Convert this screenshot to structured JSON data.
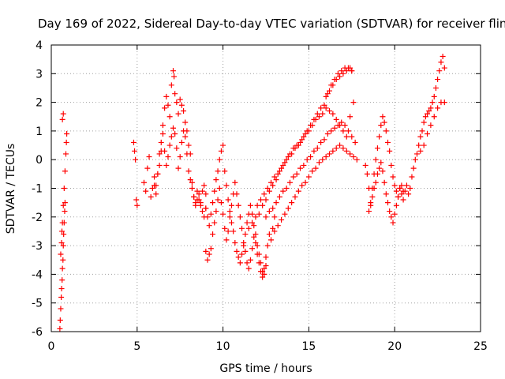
{
  "chart_data": {
    "type": "scatter",
    "title": "Day 169 of 2022, Sidereal Day-to-day VTEC variation (SDTVAR) for receiver flin",
    "xlabel": "GPS time / hours",
    "ylabel": "SDTVAR / TECUs",
    "xlim": [
      0,
      25
    ],
    "ylim": [
      -6,
      4
    ],
    "grid": true,
    "marker": "+",
    "marker_color": "#ff0000",
    "x_ticks": [
      0,
      5,
      10,
      15,
      20,
      25
    ],
    "x_tick_labels": [
      "0",
      "5",
      "10",
      "15",
      "20",
      "25"
    ],
    "y_ticks": [
      -6,
      -5,
      -4,
      -3,
      -2,
      -1,
      0,
      1,
      2,
      3,
      4
    ],
    "y_tick_labels": [
      "-6",
      "-5",
      "-4",
      "-3",
      "-2",
      "-1",
      "0",
      "1",
      "2",
      "3",
      "4"
    ],
    "series": [
      {
        "name": "SDTVAR",
        "x": [
          0.5,
          0.52,
          0.55,
          0.58,
          0.6,
          0.63,
          0.65,
          0.68,
          0.7,
          0.72,
          0.75,
          0.78,
          0.8,
          0.55,
          0.6,
          0.62,
          0.65,
          0.7,
          0.75,
          0.8,
          0.85,
          0.88,
          0.9,
          0.65,
          0.7,
          4.8,
          4.85,
          4.9,
          4.95,
          5.0,
          5.4,
          5.5,
          5.6,
          5.7,
          5.8,
          5.9,
          6.0,
          6.1,
          6.2,
          6.3,
          6.4,
          6.5,
          6.6,
          6.7,
          6.8,
          6.9,
          7.0,
          7.1,
          7.15,
          7.2,
          7.3,
          7.4,
          7.5,
          7.6,
          7.7,
          7.8,
          7.9,
          8.0,
          8.1,
          8.2,
          8.3,
          8.4,
          8.5,
          8.6,
          8.7,
          8.8,
          8.9,
          9.0,
          6.0,
          6.1,
          6.2,
          6.3,
          6.4,
          6.5,
          6.6,
          6.7,
          6.8,
          6.9,
          7.0,
          7.1,
          7.2,
          7.3,
          7.4,
          7.5,
          7.6,
          7.7,
          7.8,
          7.9,
          8.0,
          8.1,
          8.2,
          8.3,
          8.4,
          8.5,
          8.6,
          8.7,
          8.8,
          8.9,
          9.0,
          9.0,
          9.1,
          9.2,
          9.3,
          9.4,
          9.5,
          9.6,
          9.7,
          9.8,
          9.9,
          10.0,
          10.1,
          10.2,
          10.3,
          10.4,
          10.5,
          10.6,
          10.7,
          10.8,
          10.9,
          11.0,
          11.1,
          11.2,
          11.3,
          11.4,
          11.5,
          11.6,
          11.7,
          11.8,
          11.9,
          12.0,
          12.1,
          12.2,
          12.3,
          12.4,
          12.5,
          12.6,
          12.7,
          12.8,
          12.9,
          13.0,
          9.0,
          9.1,
          9.2,
          9.3,
          9.4,
          9.5,
          9.6,
          9.7,
          9.8,
          9.9,
          10.0,
          10.1,
          10.2,
          10.3,
          10.4,
          10.5,
          10.6,
          10.7,
          10.8,
          10.9,
          11.0,
          11.1,
          11.2,
          11.3,
          11.4,
          11.5,
          11.6,
          11.7,
          11.8,
          11.9,
          12.0,
          12.1,
          12.2,
          12.3,
          12.4,
          12.5,
          11.5,
          11.7,
          11.9,
          12.1,
          12.3,
          12.5,
          12.7,
          12.9,
          13.1,
          13.3,
          13.5,
          13.7,
          13.9,
          14.1,
          14.3,
          14.5,
          14.7,
          14.9,
          15.1,
          15.3,
          15.5,
          15.7,
          15.9,
          16.1,
          16.3,
          16.5,
          16.7,
          16.9,
          17.1,
          17.3,
          17.5,
          12.0,
          12.2,
          12.4,
          12.6,
          12.8,
          13.0,
          13.2,
          13.4,
          13.6,
          13.8,
          14.0,
          14.2,
          14.4,
          14.6,
          14.8,
          15.0,
          15.2,
          15.4,
          15.6,
          15.8,
          16.0,
          16.2,
          16.4,
          16.6,
          16.8,
          17.0,
          17.2,
          17.4,
          17.6,
          12.5,
          12.7,
          12.9,
          13.1,
          13.3,
          13.5,
          13.7,
          13.9,
          14.1,
          14.3,
          14.5,
          14.7,
          14.9,
          15.1,
          15.3,
          15.5,
          15.7,
          15.9,
          16.1,
          16.3,
          16.5,
          16.7,
          16.9,
          17.1,
          17.3,
          17.5,
          17.7,
          13.0,
          13.2,
          13.4,
          13.6,
          13.8,
          14.0,
          14.2,
          14.4,
          14.6,
          14.8,
          15.0,
          15.2,
          15.4,
          15.6,
          15.8,
          16.0,
          16.2,
          16.4,
          16.6,
          16.8,
          17.0,
          17.2,
          17.4,
          17.6,
          17.8,
          16.0,
          16.2,
          16.4,
          16.6,
          16.8,
          17.0,
          17.2,
          17.4,
          17.5,
          18.3,
          18.4,
          18.5,
          18.6,
          18.7,
          18.8,
          18.9,
          19.0,
          19.1,
          19.2,
          19.3,
          19.4,
          19.5,
          19.6,
          19.7,
          19.8,
          19.9,
          20.0,
          20.1,
          20.2,
          20.3,
          20.4,
          20.5,
          20.6,
          20.7,
          18.5,
          18.6,
          18.7,
          18.8,
          18.9,
          19.0,
          19.1,
          19.2,
          19.3,
          19.4,
          19.5,
          19.6,
          19.7,
          19.8,
          19.9,
          20.0,
          20.1,
          20.2,
          20.3,
          20.4,
          20.5,
          20.8,
          20.9,
          21.0,
          21.1,
          21.2,
          21.3,
          21.4,
          21.5,
          21.6,
          21.7,
          21.8,
          21.9,
          22.0,
          22.1,
          22.2,
          22.3,
          22.4,
          22.5,
          22.6,
          22.7,
          22.8,
          22.9,
          21.5,
          21.7,
          21.9,
          22.1,
          22.3,
          22.5,
          22.7,
          22.9
        ],
        "y": [
          -5.9,
          -5.6,
          -5.2,
          -4.8,
          -4.5,
          -4.2,
          -3.8,
          -3.5,
          -3.0,
          -2.6,
          -2.2,
          -1.8,
          -1.5,
          -3.3,
          -2.9,
          -2.5,
          -2.2,
          -1.6,
          -1.0,
          -0.4,
          0.2,
          0.6,
          0.9,
          1.4,
          1.6,
          0.6,
          0.3,
          0.0,
          -1.4,
          -1.6,
          -0.8,
          -1.1,
          -0.3,
          0.1,
          -1.3,
          -1.0,
          -0.9,
          -1.2,
          -0.5,
          -0.2,
          0.3,
          1.2,
          1.8,
          2.2,
          1.9,
          1.5,
          2.6,
          3.1,
          2.9,
          2.3,
          2.0,
          1.6,
          2.1,
          1.9,
          1.7,
          1.3,
          1.0,
          0.5,
          0.2,
          -0.8,
          -1.3,
          -1.6,
          -1.4,
          -1.2,
          -1.5,
          -1.1,
          -0.9,
          -1.2,
          -0.6,
          -0.9,
          -0.5,
          0.2,
          0.6,
          0.9,
          0.3,
          -0.2,
          0.1,
          0.5,
          0.8,
          1.1,
          0.9,
          0.4,
          -0.3,
          0.1,
          0.6,
          1.0,
          0.8,
          0.2,
          -0.4,
          -0.7,
          -1.0,
          -1.3,
          -1.5,
          -1.1,
          -1.4,
          -1.6,
          -1.8,
          -2.0,
          -1.7,
          -3.2,
          -3.5,
          -3.3,
          -3.1,
          -2.6,
          -2.2,
          -1.8,
          -1.4,
          -1.0,
          -1.5,
          -1.9,
          -2.4,
          -2.8,
          -2.5,
          -2.0,
          -1.6,
          -1.2,
          -0.8,
          -1.2,
          -1.6,
          -2.0,
          -2.4,
          -2.9,
          -3.2,
          -3.6,
          -3.8,
          -3.5,
          -3.1,
          -2.7,
          -2.9,
          -3.3,
          -3.6,
          -3.9,
          -4.1,
          -3.8,
          -3.4,
          -3.0,
          -2.6,
          -2.8,
          -2.4,
          -2.0,
          -1.7,
          -2.0,
          -2.3,
          -1.9,
          -1.5,
          -1.1,
          -0.7,
          -0.4,
          0.0,
          0.3,
          0.5,
          -0.4,
          -0.9,
          -1.4,
          -1.8,
          -2.2,
          -2.5,
          -2.9,
          -3.2,
          -3.4,
          -3.6,
          -3.3,
          -3.0,
          -2.6,
          -2.2,
          -1.9,
          -1.6,
          -1.9,
          -2.3,
          -2.6,
          -3.0,
          -3.3,
          -3.6,
          -3.9,
          -4.0,
          -3.7,
          -2.4,
          -2.2,
          -2.0,
          -1.9,
          -1.6,
          -1.4,
          -1.1,
          -0.9,
          -0.7,
          -0.4,
          -0.2,
          0.0,
          0.2,
          0.4,
          0.5,
          0.6,
          0.8,
          1.0,
          1.2,
          1.4,
          1.6,
          1.8,
          1.9,
          2.3,
          2.6,
          2.8,
          3.0,
          3.1,
          3.2,
          3.2,
          3.1,
          -1.6,
          -1.4,
          -1.2,
          -1.0,
          -0.8,
          -0.6,
          -0.5,
          -0.3,
          -0.1,
          0.1,
          0.2,
          0.4,
          0.5,
          0.7,
          0.9,
          1.0,
          1.2,
          1.4,
          1.5,
          1.6,
          1.8,
          1.7,
          1.6,
          1.4,
          1.2,
          1.0,
          0.8,
          1.5,
          2.0,
          -2.0,
          -1.8,
          -1.7,
          -1.5,
          -1.3,
          -1.1,
          -1.0,
          -0.8,
          -0.6,
          -0.5,
          -0.3,
          -0.2,
          0.0,
          0.1,
          0.3,
          0.4,
          0.6,
          0.7,
          0.9,
          1.0,
          1.1,
          1.2,
          1.3,
          1.2,
          1.0,
          0.8,
          0.6,
          -2.5,
          -2.3,
          -2.1,
          -1.9,
          -1.7,
          -1.5,
          -1.3,
          -1.1,
          -0.9,
          -0.8,
          -0.6,
          -0.4,
          -0.3,
          -0.1,
          0.0,
          0.1,
          0.2,
          0.3,
          0.4,
          0.5,
          0.4,
          0.3,
          0.2,
          0.1,
          0.0,
          2.2,
          2.4,
          2.6,
          2.8,
          2.9,
          3.0,
          3.1,
          3.2,
          3.1,
          -0.2,
          -0.5,
          -1.0,
          -1.5,
          -1.0,
          -0.5,
          0.0,
          0.4,
          0.8,
          1.2,
          1.5,
          1.3,
          1.0,
          0.6,
          0.3,
          -0.2,
          -0.6,
          -0.9,
          -1.1,
          -1.3,
          -1.0,
          -1.2,
          -1.4,
          -1.1,
          -0.9,
          -1.8,
          -1.6,
          -1.3,
          -1.0,
          -0.8,
          -0.5,
          -0.3,
          -0.1,
          -0.4,
          -0.8,
          -1.2,
          -1.5,
          -1.8,
          -2.0,
          -2.2,
          -1.9,
          -1.6,
          -1.3,
          -1.0,
          -0.9,
          -1.1,
          -1.2,
          -1.0,
          -0.6,
          -0.3,
          0.0,
          0.2,
          0.5,
          0.8,
          1.0,
          1.3,
          1.5,
          1.6,
          1.7,
          1.8,
          2.0,
          2.2,
          2.5,
          2.8,
          3.1,
          3.4,
          3.6,
          3.2,
          0.3,
          0.5,
          0.9,
          1.2,
          1.5,
          1.8,
          2.0,
          2.0
        ]
      }
    ]
  }
}
